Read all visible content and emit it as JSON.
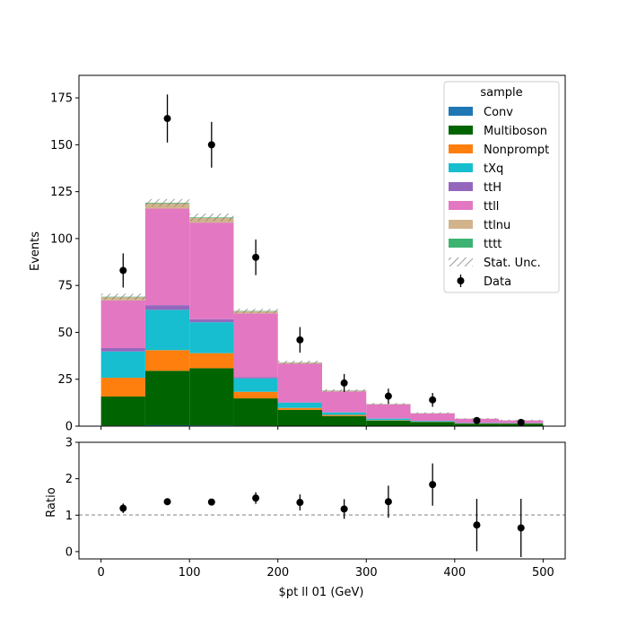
{
  "chart_data": [
    {
      "type": "bar",
      "subtype": "stacked-histogram",
      "ylabel": "Events",
      "xlim": [
        -25,
        525
      ],
      "ylim": [
        0,
        187
      ],
      "yticks": [
        0,
        25,
        50,
        75,
        100,
        125,
        150,
        175
      ],
      "xticks": [
        0,
        100,
        200,
        300,
        400,
        500
      ],
      "bin_edges": [
        0,
        50,
        100,
        150,
        200,
        250,
        300,
        350,
        400,
        450,
        500
      ],
      "series": [
        {
          "name": "Conv",
          "color": "#1f77b4",
          "values": [
            0.3,
            0.5,
            0.4,
            0.3,
            0.2,
            0.1,
            0.1,
            0.05,
            0.05,
            0.05
          ]
        },
        {
          "name": "Multiboson",
          "color": "#006400",
          "values": [
            15.5,
            29,
            30.5,
            14.5,
            8.5,
            5.3,
            2.9,
            2.2,
            1.3,
            1.3
          ]
        },
        {
          "name": "Nonprompt",
          "color": "#ff7f0e",
          "values": [
            10,
            11,
            8,
            3.5,
            1.0,
            0.6,
            0.2,
            0.1,
            0.1,
            0.1
          ]
        },
        {
          "name": "tXq",
          "color": "#17becf",
          "values": [
            14,
            21.5,
            16.5,
            7.2,
            2.8,
            1.3,
            0.8,
            0.4,
            0.2,
            0.15
          ]
        },
        {
          "name": "ttH",
          "color": "#9467bd",
          "values": [
            1.8,
            2.5,
            1.6,
            0.6,
            0.3,
            0.2,
            0.1,
            0.05,
            0.05,
            0.05
          ]
        },
        {
          "name": "ttll",
          "color": "#e377c2",
          "values": [
            25.4,
            51.5,
            51.5,
            34,
            20.5,
            11,
            7.5,
            4.0,
            2.2,
            1.4
          ]
        },
        {
          "name": "ttlnu",
          "color": "#d2b48c",
          "values": [
            1.8,
            2.8,
            2.5,
            1.1,
            0.6,
            0.4,
            0.2,
            0.1,
            0.05,
            0.05
          ]
        },
        {
          "name": "tttt",
          "color": "#3cb371",
          "values": [
            0.2,
            0.3,
            0.3,
            0.2,
            0.1,
            0.1,
            0.05,
            0.05,
            0.02,
            0.02
          ]
        }
      ],
      "stat_unc": {
        "name": "Stat. Unc.",
        "halfwidth": [
          1.6,
          2.0,
          2.0,
          1.2,
          0.9,
          0.7,
          0.5,
          0.4,
          0.3,
          0.3
        ]
      },
      "data": {
        "name": "Data",
        "x": [
          25,
          75,
          125,
          175,
          225,
          275,
          325,
          375,
          425,
          475
        ],
        "y": [
          83,
          164,
          150,
          90,
          46,
          23,
          16,
          14,
          3,
          2
        ],
        "yerr": [
          9.1,
          12.8,
          12.2,
          9.5,
          6.8,
          4.8,
          4.0,
          3.7,
          1.7,
          1.4
        ]
      },
      "legend": {
        "title": "sample",
        "placement": "top-right"
      }
    },
    {
      "type": "scatter",
      "xlabel": "$pt ll 01 (GeV)",
      "ylabel": "Ratio",
      "xlim": [
        -25,
        525
      ],
      "ylim": [
        -0.2,
        3
      ],
      "yticks": [
        0,
        1,
        2,
        3
      ],
      "xticks": [
        0,
        100,
        200,
        300,
        400,
        500
      ],
      "reference_line": 1,
      "x": [
        25,
        75,
        125,
        175,
        225,
        275,
        325,
        375,
        425,
        475
      ],
      "y": [
        1.19,
        1.37,
        1.36,
        1.47,
        1.35,
        1.17,
        1.37,
        1.84,
        0.73,
        0.65
      ],
      "yerr": [
        0.13,
        0.09,
        0.09,
        0.16,
        0.22,
        0.27,
        0.44,
        0.58,
        0.72,
        0.8
      ]
    }
  ]
}
